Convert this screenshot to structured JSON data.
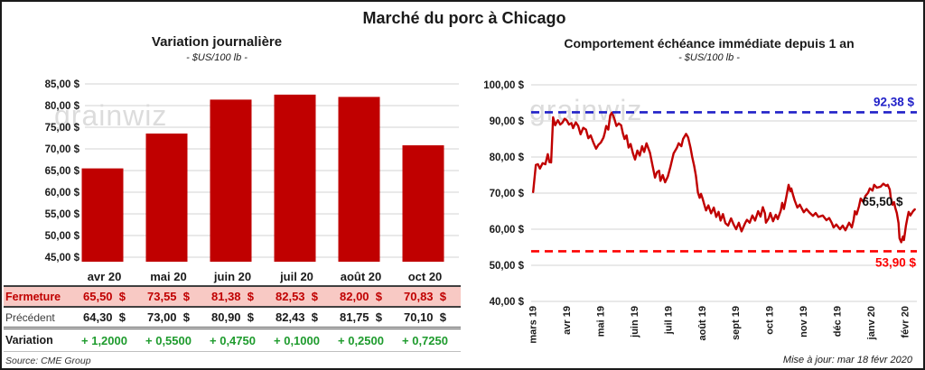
{
  "page": {
    "title": "Marché du porc à Chicago",
    "watermark": "grainwiz"
  },
  "left": {
    "title": "Variation journalière",
    "subtitle": "- $US/100 lb -",
    "source": "Source: CME Group",
    "table": {
      "close_label": "Fermeture",
      "previous_label": "Précédent",
      "change_label": "Variation",
      "months": [
        "avr 20",
        "mai 20",
        "juin 20",
        "juil 20",
        "août 20",
        "oct 20"
      ],
      "close_values": [
        "65,50  $",
        "73,55  $",
        "81,38  $",
        "82,53  $",
        "82,00  $",
        "70,83  $"
      ],
      "previous_values": [
        "64,30  $",
        "73,00  $",
        "80,90  $",
        "82,43  $",
        "81,75  $",
        "70,10  $"
      ],
      "change_values": [
        "+ 1,2000",
        "+ 0,5500",
        "+ 0,4750",
        "+ 0,1000",
        "+ 0,2500",
        "+ 0,7250"
      ]
    }
  },
  "right": {
    "title": "Comportement échéance immédiate depuis 1 an",
    "subtitle": "- $US/100 lb -",
    "updated": "Mise à jour: mar 18 févr 2020",
    "high_label": "92,38 $",
    "low_label": "53,90 $",
    "last_label": "65,50 $"
  },
  "colors": {
    "bar": "#c00000",
    "series_line": "#c00000",
    "high_line": "#2121c8",
    "low_line": "#fd0000",
    "change_green": "#1e9b2d",
    "close_row_bg": "#f8c9c4",
    "grid": "#dcdcdc",
    "tick_text": "#1a1a1a"
  },
  "chart_data": [
    {
      "type": "bar",
      "title": "Variation journalière",
      "subtitle": "- $US/100 lb -",
      "categories": [
        "avr 20",
        "mai 20",
        "juin 20",
        "juil 20",
        "août 20",
        "oct 20"
      ],
      "values": [
        65.5,
        73.55,
        81.38,
        82.53,
        82.0,
        70.83
      ],
      "ylabel": "$US/100 lb",
      "ylim": [
        45,
        85
      ],
      "y_tick_values": [
        45,
        50,
        55,
        60,
        65,
        70,
        75,
        80,
        85
      ],
      "y_tick_labels": [
        "45,00 $",
        "50,00 $",
        "55,00 $",
        "60,00 $",
        "65,00 $",
        "70,00 $",
        "75,00 $",
        "80,00 $",
        "85,00 $"
      ],
      "grid": true,
      "legend": false
    },
    {
      "type": "line",
      "title": "Comportement échéance immédiate depuis 1 an",
      "subtitle": "- $US/100 lb -",
      "x_labels": [
        "mars 19",
        "avr 19",
        "mai 19",
        "juin 19",
        "juil 19",
        "août 19",
        "sept 19",
        "oct 19",
        "nov 19",
        "déc 19",
        "janv 20",
        "févr 20"
      ],
      "ylim": [
        40,
        100
      ],
      "y_tick_values": [
        40,
        50,
        60,
        70,
        80,
        90,
        100
      ],
      "y_tick_labels": [
        "40,00 $",
        "50,00 $",
        "60,00 $",
        "70,00 $",
        "80,00 $",
        "90,00 $",
        "100,00 $"
      ],
      "grid": true,
      "legend": false,
      "ref_lines": [
        {
          "name": "high",
          "value": 92.38,
          "label": "92,38 $",
          "style": "dashed"
        },
        {
          "name": "low",
          "value": 53.9,
          "label": "53,90 $",
          "style": "dashed"
        }
      ],
      "last_value": 65.5,
      "series": [
        {
          "name": "échéance immédiate",
          "points": [
            [
              0.02,
              70.3
            ],
            [
              0.1,
              77.8
            ],
            [
              0.16,
              78.0
            ],
            [
              0.22,
              76.8
            ],
            [
              0.3,
              78.3
            ],
            [
              0.38,
              78.0
            ],
            [
              0.45,
              80.8
            ],
            [
              0.5,
              78.6
            ],
            [
              0.55,
              78.5
            ],
            [
              0.61,
              91.0
            ],
            [
              0.67,
              88.8
            ],
            [
              0.75,
              90.2
            ],
            [
              0.82,
              89.0
            ],
            [
              0.88,
              89.5
            ],
            [
              0.95,
              90.6
            ],
            [
              1.01,
              90.2
            ],
            [
              1.08,
              89.0
            ],
            [
              1.15,
              89.4
            ],
            [
              1.2,
              88.0
            ],
            [
              1.28,
              89.6
            ],
            [
              1.35,
              88.6
            ],
            [
              1.42,
              86.3
            ],
            [
              1.5,
              88.1
            ],
            [
              1.58,
              87.6
            ],
            [
              1.65,
              85.2
            ],
            [
              1.72,
              86.0
            ],
            [
              1.8,
              84.0
            ],
            [
              1.88,
              82.3
            ],
            [
              1.95,
              83.4
            ],
            [
              2.02,
              84.0
            ],
            [
              2.1,
              85.4
            ],
            [
              2.14,
              86.8
            ],
            [
              2.18,
              88.6
            ],
            [
              2.24,
              87.6
            ],
            [
              2.3,
              91.6
            ],
            [
              2.35,
              92.3
            ],
            [
              2.42,
              90.6
            ],
            [
              2.48,
              88.6
            ],
            [
              2.55,
              89.3
            ],
            [
              2.62,
              88.8
            ],
            [
              2.67,
              86.6
            ],
            [
              2.72,
              85.0
            ],
            [
              2.78,
              86.0
            ],
            [
              2.84,
              82.6
            ],
            [
              2.9,
              83.6
            ],
            [
              2.97,
              81.0
            ],
            [
              3.03,
              79.3
            ],
            [
              3.1,
              81.8
            ],
            [
              3.17,
              80.4
            ],
            [
              3.24,
              83.0
            ],
            [
              3.3,
              81.4
            ],
            [
              3.37,
              83.8
            ],
            [
              3.47,
              81.2
            ],
            [
              3.55,
              77.6
            ],
            [
              3.62,
              74.3
            ],
            [
              3.68,
              75.8
            ],
            [
              3.74,
              76.2
            ],
            [
              3.78,
              73.4
            ],
            [
              3.85,
              75.0
            ],
            [
              3.92,
              73.0
            ],
            [
              4.0,
              74.6
            ],
            [
              4.08,
              77.4
            ],
            [
              4.17,
              81.0
            ],
            [
              4.27,
              82.6
            ],
            [
              4.32,
              83.8
            ],
            [
              4.4,
              83.0
            ],
            [
              4.45,
              85.0
            ],
            [
              4.54,
              86.4
            ],
            [
              4.6,
              85.4
            ],
            [
              4.67,
              82.6
            ],
            [
              4.72,
              80.0
            ],
            [
              4.78,
              77.5
            ],
            [
              4.83,
              74.8
            ],
            [
              4.89,
              70.2
            ],
            [
              4.94,
              68.7
            ],
            [
              4.98,
              69.8
            ],
            [
              5.03,
              68.4
            ],
            [
              5.08,
              66.8
            ],
            [
              5.13,
              65.2
            ],
            [
              5.2,
              66.6
            ],
            [
              5.28,
              64.4
            ],
            [
              5.36,
              66.0
            ],
            [
              5.43,
              63.4
            ],
            [
              5.5,
              64.8
            ],
            [
              5.56,
              62.4
            ],
            [
              5.63,
              64.2
            ],
            [
              5.7,
              61.7
            ],
            [
              5.78,
              61.0
            ],
            [
              5.87,
              63.0
            ],
            [
              5.94,
              61.4
            ],
            [
              6.02,
              60.0
            ],
            [
              6.1,
              61.8
            ],
            [
              6.18,
              59.4
            ],
            [
              6.28,
              61.6
            ],
            [
              6.34,
              62.6
            ],
            [
              6.42,
              61.8
            ],
            [
              6.5,
              63.8
            ],
            [
              6.58,
              62.4
            ],
            [
              6.67,
              65.0
            ],
            [
              6.74,
              63.5
            ],
            [
              6.81,
              66.1
            ],
            [
              6.87,
              64.4
            ],
            [
              6.9,
              61.8
            ],
            [
              6.98,
              63.0
            ],
            [
              7.03,
              64.5
            ],
            [
              7.11,
              62.2
            ],
            [
              7.19,
              64.0
            ],
            [
              7.25,
              62.8
            ],
            [
              7.34,
              65.2
            ],
            [
              7.38,
              67.3
            ],
            [
              7.43,
              65.6
            ],
            [
              7.5,
              68.8
            ],
            [
              7.57,
              72.3
            ],
            [
              7.62,
              70.5
            ],
            [
              7.65,
              71.3
            ],
            [
              7.7,
              69.5
            ],
            [
              7.75,
              68.0
            ],
            [
              7.83,
              66.0
            ],
            [
              7.9,
              66.8
            ],
            [
              8.02,
              64.7
            ],
            [
              8.1,
              65.6
            ],
            [
              8.18,
              64.7
            ],
            [
              8.29,
              63.7
            ],
            [
              8.37,
              64.5
            ],
            [
              8.45,
              63.4
            ],
            [
              8.58,
              63.8
            ],
            [
              8.69,
              62.5
            ],
            [
              8.77,
              63.1
            ],
            [
              8.85,
              61.7
            ],
            [
              8.9,
              60.5
            ],
            [
              8.98,
              61.3
            ],
            [
              9.09,
              60.0
            ],
            [
              9.17,
              61.0
            ],
            [
              9.25,
              59.7
            ],
            [
              9.36,
              61.8
            ],
            [
              9.44,
              60.5
            ],
            [
              9.49,
              62.5
            ],
            [
              9.53,
              65.0
            ],
            [
              9.58,
              64.1
            ],
            [
              9.65,
              66.3
            ],
            [
              9.7,
              68.5
            ],
            [
              9.78,
              67.5
            ],
            [
              9.84,
              69.2
            ],
            [
              9.92,
              70.1
            ],
            [
              9.97,
              71.3
            ],
            [
              10.05,
              70.7
            ],
            [
              10.1,
              72.3
            ],
            [
              10.18,
              71.5
            ],
            [
              10.29,
              71.8
            ],
            [
              10.37,
              72.6
            ],
            [
              10.45,
              72.0
            ],
            [
              10.5,
              72.3
            ],
            [
              10.56,
              71.0
            ],
            [
              10.59,
              68.8
            ],
            [
              10.64,
              66.8
            ],
            [
              10.69,
              67.5
            ],
            [
              10.72,
              66.0
            ],
            [
              10.77,
              64.5
            ],
            [
              10.82,
              61.7
            ],
            [
              10.85,
              57.5
            ],
            [
              10.9,
              56.4
            ],
            [
              10.95,
              58.0
            ],
            [
              10.98,
              57.0
            ],
            [
              11.04,
              61.0
            ],
            [
              11.09,
              63.5
            ],
            [
              11.12,
              64.8
            ],
            [
              11.17,
              63.8
            ],
            [
              11.25,
              65.0
            ],
            [
              11.3,
              65.5
            ]
          ]
        }
      ]
    }
  ]
}
